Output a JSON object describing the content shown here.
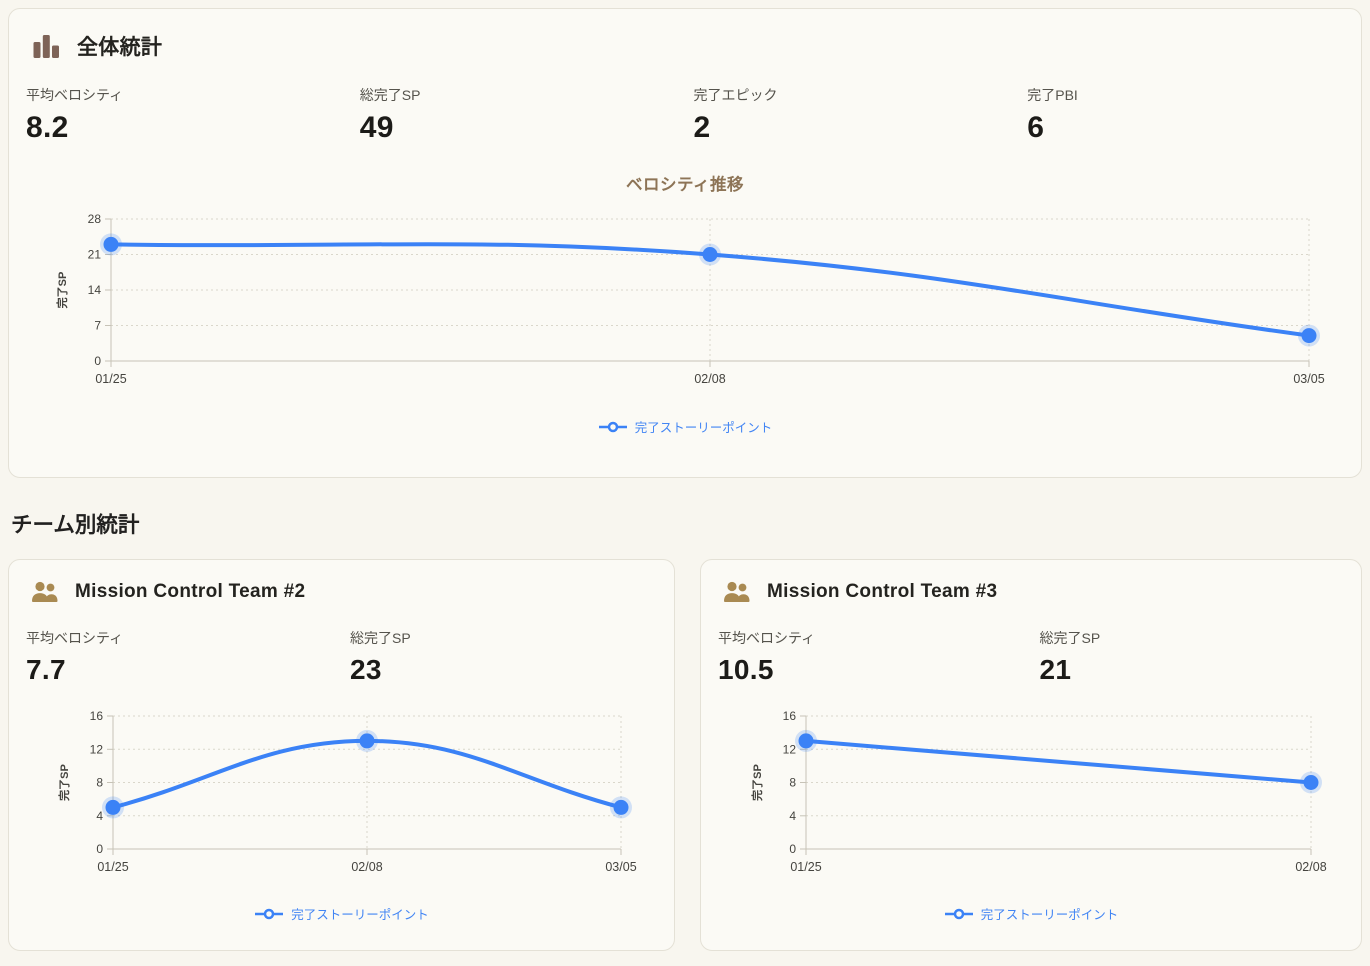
{
  "overall": {
    "title": "全体統計",
    "stats": [
      {
        "label": "平均ベロシティ",
        "value": "8.2"
      },
      {
        "label": "総完了SP",
        "value": "49"
      },
      {
        "label": "完了エピック",
        "value": "2"
      },
      {
        "label": "完了PBI",
        "value": "6"
      }
    ],
    "chart_title": "ベロシティ推移"
  },
  "teams_heading": "チーム別統計",
  "teams": [
    {
      "title": "Mission Control Team #2",
      "stats": [
        {
          "label": "平均ベロシティ",
          "value": "7.7"
        },
        {
          "label": "総完了SP",
          "value": "23"
        }
      ]
    },
    {
      "title": "Mission Control Team #3",
      "stats": [
        {
          "label": "平均ベロシティ",
          "value": "10.5"
        },
        {
          "label": "総完了SP",
          "value": "21"
        }
      ]
    }
  ],
  "chart_data": [
    {
      "type": "line",
      "title": "ベロシティ推移",
      "categories": [
        "01/25",
        "02/08",
        "03/05"
      ],
      "series": [
        {
          "name": "完了ストーリーポイント",
          "values": [
            23,
            21,
            5
          ]
        }
      ],
      "ylabel": "完了SP",
      "yticks": [
        0,
        7,
        14,
        21,
        28
      ],
      "ylim": [
        0,
        28
      ],
      "grid": "dotted",
      "legend_position": "bottom",
      "color": "#3b82f6"
    },
    {
      "type": "line",
      "title": "",
      "categories": [
        "01/25",
        "02/08",
        "03/05"
      ],
      "series": [
        {
          "name": "完了ストーリーポイント",
          "values": [
            5,
            13,
            5
          ]
        }
      ],
      "ylabel": "完了SP",
      "yticks": [
        0,
        4,
        8,
        12,
        16
      ],
      "ylim": [
        0,
        16
      ],
      "grid": "dotted",
      "legend_position": "bottom",
      "color": "#3b82f6"
    },
    {
      "type": "line",
      "title": "",
      "categories": [
        "01/25",
        "02/08"
      ],
      "series": [
        {
          "name": "完了ストーリーポイント",
          "values": [
            13,
            8
          ]
        }
      ],
      "ylabel": "完了SP",
      "yticks": [
        0,
        4,
        8,
        12,
        16
      ],
      "ylim": [
        0,
        16
      ],
      "grid": "dotted",
      "legend_position": "bottom",
      "color": "#3b82f6"
    }
  ],
  "colors": {
    "accent_blue": "#3b82f6",
    "legend_text_blue": "#4285f4",
    "brand_brown": "#7e6357",
    "team_icon_tan": "#a98a52",
    "chart_title_brown": "#8d7456",
    "page_bg": "#f8f6ef",
    "card_bg": "#fbfaf5",
    "card_border": "#e4e1d6"
  }
}
